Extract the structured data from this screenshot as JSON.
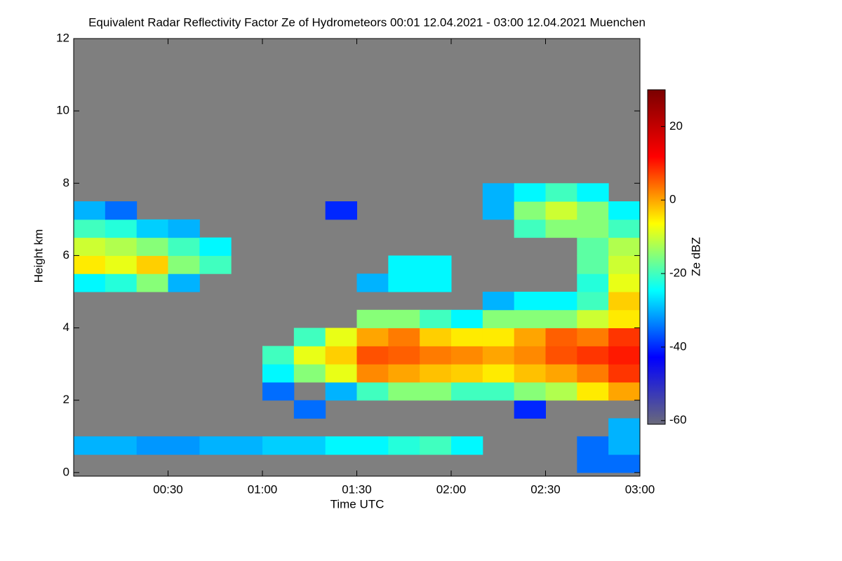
{
  "chart_data": {
    "type": "heatmap",
    "title": "Equivalent Radar Reflectivity Factor Ze of Hydrometeors   00:01 12.04.2021 - 03:00 12.04.2021 Muenchen",
    "x_label": "Time UTC",
    "y_label": "Height km",
    "colorbar_label": "Ze dBZ",
    "background": "#7f7f7f",
    "colormap": [
      "#6a6a7a",
      "#0000ff",
      "#00ffff",
      "#ffff00",
      "#ff0000",
      "#7a0000"
    ],
    "x": [
      "00:05",
      "00:15",
      "00:25",
      "00:35",
      "00:45",
      "00:55",
      "01:05",
      "01:15",
      "01:25",
      "01:35",
      "01:45",
      "01:55",
      "02:05",
      "02:15",
      "02:25",
      "02:35",
      "02:45",
      "02:55"
    ],
    "y": [
      0.25,
      0.75,
      1.25,
      1.75,
      2.25,
      2.75,
      3.25,
      3.75,
      4.25,
      4.75,
      5.25,
      5.75,
      6.25,
      6.75,
      7.25,
      7.75,
      8.25
    ],
    "z": [
      [
        null,
        null,
        null,
        null,
        null,
        null,
        null,
        null,
        null,
        null,
        null,
        null,
        null,
        null,
        null,
        null,
        -35,
        -35
      ],
      [
        -30,
        -30,
        -32,
        -32,
        -30,
        -30,
        -28,
        -28,
        -25,
        -25,
        -22,
        -20,
        -25,
        null,
        null,
        null,
        -35,
        -30
      ],
      [
        null,
        null,
        null,
        null,
        null,
        null,
        null,
        null,
        null,
        null,
        null,
        null,
        null,
        null,
        null,
        null,
        null,
        -30
      ],
      [
        null,
        null,
        null,
        null,
        null,
        null,
        null,
        -35,
        null,
        null,
        null,
        null,
        null,
        null,
        -40,
        null,
        null,
        null
      ],
      [
        null,
        null,
        null,
        null,
        null,
        null,
        -35,
        null,
        -30,
        -20,
        -15,
        -15,
        -20,
        -20,
        -15,
        -12,
        -5,
        0
      ],
      [
        null,
        null,
        null,
        null,
        null,
        null,
        -25,
        -15,
        -8,
        2,
        0,
        -2,
        -3,
        -5,
        -2,
        0,
        3,
        8
      ],
      [
        null,
        null,
        null,
        null,
        null,
        null,
        -20,
        -8,
        -3,
        6,
        5,
        3,
        2,
        0,
        2,
        6,
        8,
        10
      ],
      [
        null,
        null,
        null,
        null,
        null,
        null,
        null,
        -20,
        -8,
        0,
        3,
        -3,
        -5,
        -5,
        0,
        5,
        3,
        8
      ],
      [
        null,
        null,
        null,
        null,
        null,
        null,
        null,
        null,
        null,
        -15,
        -15,
        -20,
        -25,
        -15,
        -15,
        -15,
        -10,
        -5
      ],
      [
        null,
        null,
        null,
        null,
        null,
        null,
        null,
        null,
        null,
        null,
        null,
        null,
        null,
        -30,
        -25,
        -25,
        -20,
        -3
      ],
      [
        -25,
        -22,
        -15,
        -30,
        null,
        null,
        null,
        null,
        null,
        -30,
        -25,
        -25,
        null,
        null,
        null,
        null,
        -22,
        -8
      ],
      [
        -5,
        -8,
        -3,
        -15,
        -20,
        null,
        null,
        null,
        null,
        null,
        -25,
        -25,
        null,
        null,
        null,
        null,
        -18,
        -10
      ],
      [
        -10,
        -12,
        -15,
        -20,
        -25,
        null,
        null,
        null,
        null,
        null,
        null,
        null,
        null,
        null,
        null,
        null,
        -18,
        -12
      ],
      [
        -20,
        -22,
        -28,
        -30,
        null,
        null,
        null,
        null,
        null,
        null,
        null,
        null,
        null,
        null,
        -20,
        -15,
        -15,
        -20
      ],
      [
        -30,
        -35,
        null,
        null,
        null,
        null,
        null,
        null,
        -40,
        null,
        null,
        null,
        null,
        -30,
        -15,
        -10,
        -15,
        -25
      ],
      [
        null,
        null,
        null,
        null,
        null,
        null,
        null,
        null,
        null,
        null,
        null,
        null,
        null,
        -30,
        -25,
        -20,
        -25,
        null
      ],
      [
        null,
        null,
        null,
        null,
        null,
        null,
        null,
        null,
        null,
        null,
        null,
        null,
        null,
        null,
        null,
        null,
        null,
        null
      ]
    ],
    "xlim": [
      "00:00",
      "03:00"
    ],
    "xticks": [
      "00:30",
      "01:00",
      "01:30",
      "02:00",
      "02:30",
      "03:00"
    ],
    "ylim": [
      -0.1,
      12
    ],
    "yticks": [
      0,
      2,
      4,
      6,
      8,
      10,
      12
    ],
    "clim": [
      -61,
      30
    ],
    "cticks": [
      20,
      0,
      -20,
      -40,
      -60
    ]
  }
}
